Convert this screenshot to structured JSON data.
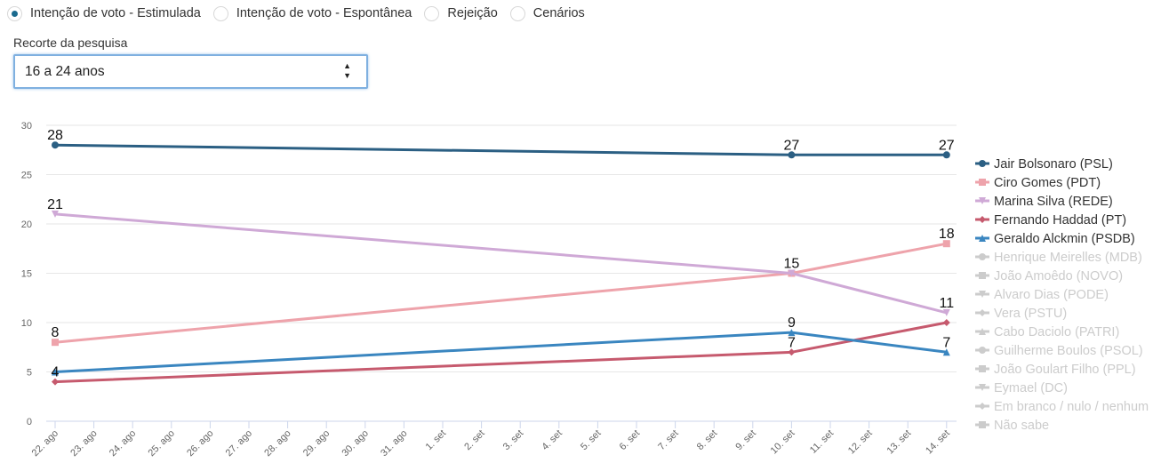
{
  "tabs": [
    {
      "label": "Intenção de voto - Estimulada",
      "selected": true
    },
    {
      "label": "Intenção de voto - Espontânea",
      "selected": false
    },
    {
      "label": "Rejeição",
      "selected": false
    },
    {
      "label": "Cenários",
      "selected": false
    }
  ],
  "filter": {
    "label": "Recorte da pesquisa",
    "selected": "16 a 24 anos"
  },
  "chart_data": {
    "type": "line",
    "title": "",
    "xlabel": "",
    "ylabel": "",
    "ylim": [
      0,
      30
    ],
    "yticks": [
      "0",
      "5",
      "10",
      "15",
      "20",
      "25",
      "30"
    ],
    "x_tick_labels": [
      "22. ago",
      "23. ago",
      "24. ago",
      "25. ago",
      "26. ago",
      "27. ago",
      "28. ago",
      "29. ago",
      "30. ago",
      "31. ago",
      "1. set",
      "2. set",
      "3. set",
      "4. set",
      "5. set",
      "6. set",
      "7. set",
      "8. set",
      "9. set",
      "10. set",
      "11. set",
      "12. set",
      "13. set",
      "14. set"
    ],
    "x": [
      "22. ago",
      "10. set",
      "14. set"
    ],
    "x_day_index": [
      0,
      19,
      23
    ],
    "grid": true,
    "legend_position": "right",
    "series": [
      {
        "name": "Jair Bolsonaro (PSL)",
        "color": "#2b5f83",
        "marker": "circle",
        "visible": true,
        "values": [
          28,
          27,
          27
        ],
        "labels": [
          "28",
          "27",
          "27"
        ]
      },
      {
        "name": "Ciro Gomes (PDT)",
        "color": "#eea3ab",
        "marker": "square",
        "visible": true,
        "values": [
          8,
          15,
          18
        ],
        "labels": [
          "8",
          "15",
          "18"
        ]
      },
      {
        "name": "Marina Silva (REDE)",
        "color": "#cfa9d6",
        "marker": "triangle-down",
        "visible": true,
        "values": [
          21,
          15,
          11
        ],
        "labels": [
          "21",
          "",
          "11"
        ]
      },
      {
        "name": "Fernando Haddad (PT)",
        "color": "#c65a6e",
        "marker": "diamond",
        "visible": true,
        "values": [
          4,
          7,
          10
        ],
        "labels": [
          "4",
          "7",
          ""
        ]
      },
      {
        "name": "Geraldo Alckmin (PSDB)",
        "color": "#3a86c0",
        "marker": "triangle",
        "visible": true,
        "values": [
          5,
          9,
          7
        ],
        "labels": [
          "",
          "9",
          "7"
        ]
      },
      {
        "name": "Henrique Meirelles (MDB)",
        "color": "#cccccc",
        "marker": "circle",
        "visible": false
      },
      {
        "name": "João Amoêdo (NOVO)",
        "color": "#cccccc",
        "marker": "square",
        "visible": false
      },
      {
        "name": "Alvaro Dias (PODE)",
        "color": "#cccccc",
        "marker": "triangle-down",
        "visible": false
      },
      {
        "name": "Vera (PSTU)",
        "color": "#cccccc",
        "marker": "diamond",
        "visible": false
      },
      {
        "name": "Cabo Daciolo (PATRI)",
        "color": "#cccccc",
        "marker": "triangle",
        "visible": false
      },
      {
        "name": "Guilherme Boulos (PSOL)",
        "color": "#cccccc",
        "marker": "circle",
        "visible": false
      },
      {
        "name": "João Goulart Filho (PPL)",
        "color": "#cccccc",
        "marker": "square",
        "visible": false
      },
      {
        "name": "Eymael (DC)",
        "color": "#cccccc",
        "marker": "triangle-down",
        "visible": false
      },
      {
        "name": "Em branco / nulo / nenhum",
        "color": "#cccccc",
        "marker": "diamond",
        "visible": false
      },
      {
        "name": "Não sabe",
        "color": "#cccccc",
        "marker": "square",
        "visible": false
      }
    ]
  }
}
